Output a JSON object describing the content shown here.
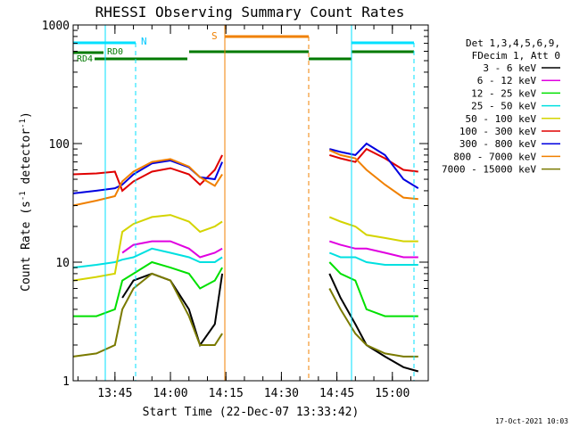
{
  "chart_data": {
    "type": "line",
    "title": "RHESSI Observing Summary Count Rates",
    "xlabel": "Start Time (22-Dec-07 13:33:42)",
    "ylabel": "Count Rate (s⁻¹ detector⁻¹)",
    "ylabel_parts": {
      "main": "Count Rate (s",
      "exp1": "-1",
      "mid": " detector",
      "exp2": "-1",
      "end": ")"
    },
    "yscale": "log",
    "ylim": [
      1,
      1000
    ],
    "xlim": [
      "13:33:42",
      "15:09:42"
    ],
    "grid": false,
    "legend_placement": "right",
    "x_ticks": [
      "13:45",
      "14:00",
      "14:15",
      "14:30",
      "14:45",
      "15:00"
    ],
    "y_ticks": [
      "1",
      "10",
      "100",
      "1000"
    ],
    "legend_header": [
      "Det 1,3,4,5,6,9,",
      "FDecim 1, Att 0"
    ],
    "series": [
      {
        "name": "3 - 6 keV",
        "color": "#000000",
        "points": [
          [
            "13:47:00",
            5
          ],
          [
            "13:50:00",
            7
          ],
          [
            "13:55:00",
            8
          ],
          [
            "14:00:00",
            7
          ],
          [
            "14:05:00",
            4
          ],
          [
            "14:08:00",
            2
          ],
          [
            "14:12:00",
            3
          ],
          [
            "14:14:00",
            8
          ],
          [
            "14:43:00",
            8
          ],
          [
            "14:46:00",
            5
          ],
          [
            "14:50:00",
            3
          ],
          [
            "14:53:00",
            2
          ],
          [
            "14:58:00",
            1.6
          ],
          [
            "15:03:00",
            1.3
          ],
          [
            "15:07:00",
            1.2
          ]
        ]
      },
      {
        "name": "6 - 12 keV",
        "color": "#e000e0",
        "points": [
          [
            "13:47:00",
            12
          ],
          [
            "13:50:00",
            14
          ],
          [
            "13:55:00",
            15
          ],
          [
            "14:00:00",
            15
          ],
          [
            "14:05:00",
            13
          ],
          [
            "14:08:00",
            11
          ],
          [
            "14:12:00",
            12
          ],
          [
            "14:14:00",
            13
          ],
          [
            "14:43:00",
            15
          ],
          [
            "14:46:00",
            14
          ],
          [
            "14:50:00",
            13
          ],
          [
            "14:53:00",
            13
          ],
          [
            "14:58:00",
            12
          ],
          [
            "15:03:00",
            11
          ],
          [
            "15:07:00",
            11
          ]
        ]
      },
      {
        "name": "12 - 25 keV",
        "color": "#00e000",
        "points": [
          [
            "13:33:42",
            3.5
          ],
          [
            "13:40:00",
            3.5
          ],
          [
            "13:45:00",
            4
          ],
          [
            "13:47:00",
            7
          ],
          [
            "13:50:00",
            8
          ],
          [
            "13:55:00",
            10
          ],
          [
            "14:00:00",
            9
          ],
          [
            "14:05:00",
            8
          ],
          [
            "14:08:00",
            6
          ],
          [
            "14:12:00",
            7
          ],
          [
            "14:14:00",
            9
          ],
          [
            "14:43:00",
            10
          ],
          [
            "14:46:00",
            8
          ],
          [
            "14:50:00",
            7
          ],
          [
            "14:53:00",
            4
          ],
          [
            "14:58:00",
            3.5
          ],
          [
            "15:03:00",
            3.5
          ],
          [
            "15:07:00",
            3.5
          ]
        ]
      },
      {
        "name": "25 - 50 keV",
        "color": "#00e0e0",
        "points": [
          [
            "13:33:42",
            9
          ],
          [
            "13:40:00",
            9.5
          ],
          [
            "13:45:00",
            10
          ],
          [
            "13:47:00",
            10.5
          ],
          [
            "13:50:00",
            11
          ],
          [
            "13:55:00",
            13
          ],
          [
            "14:00:00",
            12
          ],
          [
            "14:05:00",
            11
          ],
          [
            "14:08:00",
            10
          ],
          [
            "14:12:00",
            10
          ],
          [
            "14:14:00",
            11
          ],
          [
            "14:43:00",
            12
          ],
          [
            "14:46:00",
            11
          ],
          [
            "14:50:00",
            11
          ],
          [
            "14:53:00",
            10
          ],
          [
            "14:58:00",
            9.5
          ],
          [
            "15:03:00",
            9.5
          ],
          [
            "15:07:00",
            9.5
          ]
        ]
      },
      {
        "name": "50 - 100 keV",
        "color": "#d4d400",
        "points": [
          [
            "13:33:42",
            7
          ],
          [
            "13:40:00",
            7.5
          ],
          [
            "13:45:00",
            8
          ],
          [
            "13:47:00",
            18
          ],
          [
            "13:50:00",
            21
          ],
          [
            "13:55:00",
            24
          ],
          [
            "14:00:00",
            25
          ],
          [
            "14:05:00",
            22
          ],
          [
            "14:08:00",
            18
          ],
          [
            "14:12:00",
            20
          ],
          [
            "14:14:00",
            22
          ],
          [
            "14:43:00",
            24
          ],
          [
            "14:46:00",
            22
          ],
          [
            "14:50:00",
            20
          ],
          [
            "14:53:00",
            17
          ],
          [
            "14:58:00",
            16
          ],
          [
            "15:03:00",
            15
          ],
          [
            "15:07:00",
            15
          ]
        ]
      },
      {
        "name": "100 - 300 keV",
        "color": "#e00000",
        "points": [
          [
            "13:33:42",
            55
          ],
          [
            "13:40:00",
            56
          ],
          [
            "13:45:00",
            58
          ],
          [
            "13:47:00",
            40
          ],
          [
            "13:50:00",
            48
          ],
          [
            "13:55:00",
            58
          ],
          [
            "14:00:00",
            62
          ],
          [
            "14:05:00",
            55
          ],
          [
            "14:08:00",
            45
          ],
          [
            "14:12:00",
            60
          ],
          [
            "14:14:00",
            80
          ],
          [
            "14:43:00",
            80
          ],
          [
            "14:46:00",
            75
          ],
          [
            "14:50:00",
            70
          ],
          [
            "14:53:00",
            90
          ],
          [
            "14:58:00",
            75
          ],
          [
            "15:03:00",
            60
          ],
          [
            "15:07:00",
            58
          ]
        ]
      },
      {
        "name": "300 - 800 keV",
        "color": "#0000e0",
        "points": [
          [
            "13:33:42",
            38
          ],
          [
            "13:40:00",
            40
          ],
          [
            "13:45:00",
            42
          ],
          [
            "13:47:00",
            45
          ],
          [
            "13:50:00",
            55
          ],
          [
            "13:55:00",
            68
          ],
          [
            "14:00:00",
            72
          ],
          [
            "14:05:00",
            63
          ],
          [
            "14:08:00",
            52
          ],
          [
            "14:12:00",
            50
          ],
          [
            "14:14:00",
            70
          ],
          [
            "14:43:00",
            90
          ],
          [
            "14:46:00",
            85
          ],
          [
            "14:50:00",
            80
          ],
          [
            "14:53:00",
            100
          ],
          [
            "14:58:00",
            80
          ],
          [
            "15:03:00",
            50
          ],
          [
            "15:07:00",
            42
          ]
        ]
      },
      {
        "name": "800 - 7000 keV",
        "color": "#f08000",
        "points": [
          [
            "13:33:42",
            30
          ],
          [
            "13:40:00",
            33
          ],
          [
            "13:45:00",
            36
          ],
          [
            "13:47:00",
            48
          ],
          [
            "13:50:00",
            58
          ],
          [
            "13:55:00",
            70
          ],
          [
            "14:00:00",
            74
          ],
          [
            "14:05:00",
            64
          ],
          [
            "14:08:00",
            52
          ],
          [
            "14:12:00",
            44
          ],
          [
            "14:14:00",
            55
          ],
          [
            "14:43:00",
            88
          ],
          [
            "14:46:00",
            80
          ],
          [
            "14:50:00",
            75
          ],
          [
            "14:53:00",
            60
          ],
          [
            "14:58:00",
            45
          ],
          [
            "15:03:00",
            35
          ],
          [
            "15:07:00",
            34
          ]
        ]
      },
      {
        "name": "7000 - 15000 keV",
        "color": "#7a7a00",
        "points": [
          [
            "13:33:42",
            1.6
          ],
          [
            "13:40:00",
            1.7
          ],
          [
            "13:45:00",
            2
          ],
          [
            "13:47:00",
            4
          ],
          [
            "13:50:00",
            6
          ],
          [
            "13:55:00",
            8
          ],
          [
            "14:00:00",
            7
          ],
          [
            "14:05:00",
            3.5
          ],
          [
            "14:08:00",
            2
          ],
          [
            "14:12:00",
            2
          ],
          [
            "14:14:00",
            2.5
          ],
          [
            "14:43:00",
            6
          ],
          [
            "14:46:00",
            4
          ],
          [
            "14:50:00",
            2.5
          ],
          [
            "14:53:00",
            2
          ],
          [
            "14:58:00",
            1.7
          ],
          [
            "15:03:00",
            1.6
          ],
          [
            "15:07:00",
            1.6
          ]
        ]
      }
    ],
    "annotations": {
      "flag_labels": [
        "N",
        "S",
        "RD0",
        "RD4"
      ],
      "footer_date": "17-Oct-2021 10:03"
    }
  }
}
